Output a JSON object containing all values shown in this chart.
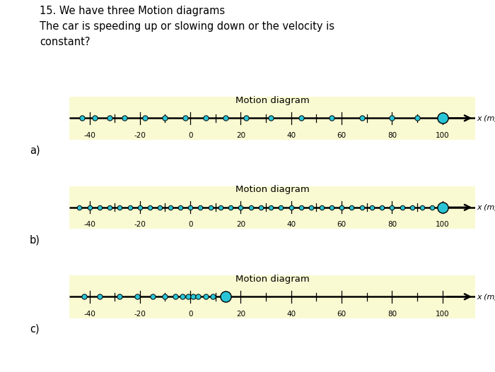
{
  "title_text": "15. We have three Motion diagrams\nThe car is speeding up or slowing down or the velocity is\nconstant?",
  "bg_color": "#FAFAD2",
  "page_bg": "#FFFFFF",
  "dot_color": "#29C5D6",
  "dot_edge_color": "#000000",
  "line_color": "#000000",
  "diagrams": [
    {
      "label": "a)",
      "subtitle": "Motion diagram",
      "xlim": [
        -48,
        113
      ],
      "xticks": [
        -40,
        -20,
        0,
        20,
        40,
        60,
        80,
        100
      ],
      "dots": [
        -43,
        -38,
        -32,
        -26,
        -18,
        -10,
        -2,
        6,
        14,
        22,
        32,
        44,
        56,
        68,
        80,
        90
      ],
      "big_dot": 100,
      "dot_size": 28,
      "big_dot_size": 120
    },
    {
      "label": "b)",
      "subtitle": "Motion diagram",
      "xlim": [
        -48,
        113
      ],
      "xticks": [
        -40,
        -20,
        0,
        20,
        40,
        60,
        80,
        100
      ],
      "dots": [
        -44,
        -40,
        -36,
        -32,
        -28,
        -24,
        -20,
        -16,
        -12,
        -8,
        -4,
        0,
        4,
        8,
        12,
        16,
        20,
        24,
        28,
        32,
        36,
        40,
        44,
        48,
        52,
        56,
        60,
        64,
        68,
        72,
        76,
        80,
        84,
        88,
        92,
        96
      ],
      "big_dot": 100,
      "dot_size": 22,
      "big_dot_size": 120
    },
    {
      "label": "c)",
      "subtitle": "Motion diagram",
      "xlim": [
        -48,
        113
      ],
      "xticks": [
        -40,
        -20,
        0,
        20,
        40,
        60,
        80,
        100
      ],
      "dots": [
        -42,
        -36,
        -28,
        -21,
        -15,
        -10,
        -6,
        -3,
        -1,
        1,
        3,
        6,
        9
      ],
      "big_dot": 14,
      "dot_size": 28,
      "big_dot_size": 120
    }
  ]
}
